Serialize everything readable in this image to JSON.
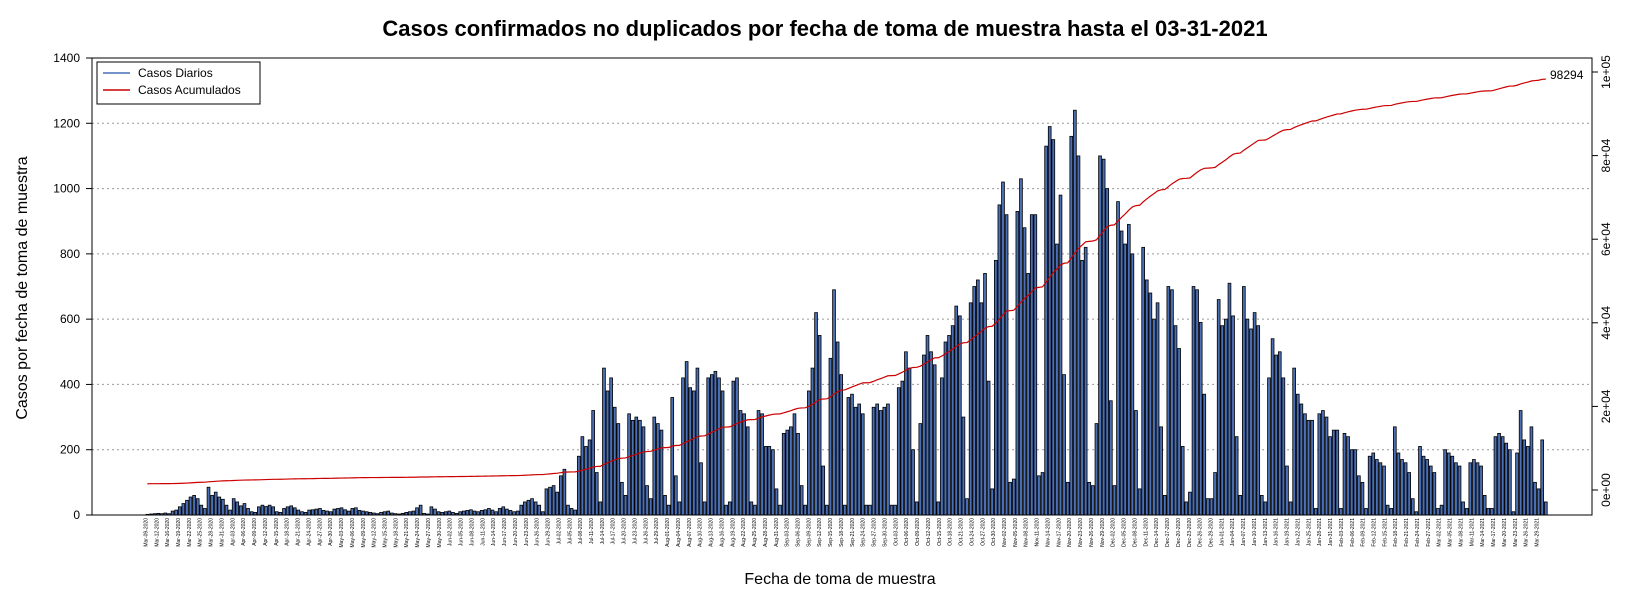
{
  "chart_data": {
    "type": "bar",
    "title": "Casos confirmados no duplicados por fecha de toma de muestra hasta el 03-31-2021",
    "xlabel": "Fecha de toma de muestra",
    "ylabel": "Casos por fecha de toma de muestra",
    "ylim": [
      0,
      1400
    ],
    "yticks": [
      0,
      200,
      400,
      600,
      800,
      1000,
      1200,
      1400
    ],
    "y2lim": [
      0,
      100000
    ],
    "y2ticks": [
      0,
      20000,
      40000,
      60000,
      80000,
      100000
    ],
    "y2tick_labels": [
      "0e+00",
      "2e+04",
      "4e+04",
      "6e+04",
      "8e+04",
      "1e+05"
    ],
    "grid": "horizontal dotted",
    "legend_position": "top-left",
    "series": [
      {
        "name": "Casos Diarios",
        "type": "bar",
        "color": "#4a6fb5",
        "values": [
          2,
          3,
          4,
          5,
          4,
          6,
          4,
          12,
          15,
          25,
          35,
          45,
          55,
          60,
          50,
          30,
          20,
          85,
          60,
          70,
          55,
          48,
          30,
          15,
          50,
          40,
          28,
          35,
          20,
          10,
          8,
          25,
          30,
          26,
          30,
          25,
          10,
          8,
          20,
          25,
          28,
          22,
          15,
          10,
          8,
          15,
          16,
          18,
          20,
          14,
          12,
          10,
          18,
          20,
          22,
          16,
          12,
          20,
          22,
          14,
          12,
          10,
          8,
          6,
          4,
          8,
          10,
          12,
          6,
          4,
          3,
          5,
          8,
          10,
          12,
          22,
          30,
          5,
          3,
          25,
          18,
          10,
          8,
          10,
          12,
          8,
          5,
          10,
          12,
          14,
          16,
          12,
          10,
          14,
          16,
          20,
          15,
          10,
          20,
          25,
          18,
          14,
          10,
          12,
          30,
          40,
          45,
          50,
          40,
          30,
          10,
          80,
          85,
          90,
          70,
          120,
          140,
          30,
          20,
          15,
          180,
          240,
          210,
          230,
          320,
          130,
          40,
          450,
          380,
          420,
          330,
          280,
          100,
          60,
          310,
          290,
          300,
          290,
          270,
          90,
          50,
          300,
          280,
          260,
          60,
          30,
          360,
          120,
          40,
          420,
          470,
          390,
          380,
          450,
          160,
          40,
          420,
          430,
          440,
          420,
          380,
          30,
          40,
          410,
          420,
          320,
          310,
          270,
          40,
          30,
          320,
          310,
          210,
          210,
          200,
          80,
          30,
          250,
          260,
          270,
          310,
          250,
          90,
          30,
          380,
          450,
          620,
          550,
          150,
          30,
          480,
          690,
          530,
          430,
          30,
          360,
          370,
          330,
          340,
          310,
          30,
          30,
          330,
          340,
          320,
          330,
          340,
          30,
          30,
          390,
          410,
          500,
          450,
          200,
          40,
          280,
          490,
          550,
          500,
          460,
          40,
          420,
          530,
          550,
          580,
          640,
          610,
          300,
          50,
          650,
          700,
          720,
          650,
          740,
          410,
          80,
          780,
          950,
          1020,
          920,
          100,
          110,
          930,
          1030,
          880,
          740,
          920,
          920,
          120,
          130,
          1130,
          1190,
          1150,
          830,
          980,
          430,
          100,
          1160,
          1240,
          1100,
          780,
          820,
          100,
          90,
          280,
          1100,
          1090,
          1000,
          350,
          90,
          960,
          870,
          830,
          890,
          800,
          320,
          80,
          820,
          720,
          680,
          600,
          650,
          270,
          60,
          700,
          690,
          580,
          510,
          210,
          40,
          70,
          700,
          690,
          590,
          370,
          50,
          50,
          130,
          660,
          580,
          600,
          710,
          610,
          240,
          60,
          700,
          600,
          570,
          620,
          580,
          60,
          40,
          420,
          540,
          490,
          500,
          420,
          150,
          40,
          450,
          370,
          340,
          310,
          290,
          290,
          20,
          310,
          320,
          300,
          240,
          260,
          260,
          20,
          250,
          240,
          200,
          200,
          120,
          100,
          20,
          180,
          190,
          170,
          160,
          150,
          30,
          20,
          270,
          190,
          170,
          160,
          130,
          50,
          10,
          210,
          180,
          170,
          150,
          130,
          20,
          30,
          200,
          190,
          180,
          160,
          150,
          40,
          20,
          160,
          170,
          160,
          150,
          60,
          20,
          20,
          240,
          250,
          240,
          220,
          200,
          10,
          190,
          320,
          230,
          210,
          270,
          100,
          80,
          230,
          40
        ]
      },
      {
        "name": "Casos Acumulados",
        "type": "line",
        "color": "#cc0000",
        "end_value": 98294,
        "end_label": "98294"
      }
    ],
    "x_tick_labels": [
      "Mar-09-2020",
      "Mar-12-2020",
      "Mar-16-2020",
      "Mar-19-2020",
      "Mar-22-2020",
      "Mar-25-2020",
      "Mar-28-2020",
      "Mar-31-2020",
      "Apr-03-2020",
      "Apr-06-2020",
      "Apr-09-2020",
      "Apr-12-2020",
      "Apr-15-2020",
      "Apr-18-2020",
      "Apr-21-2020",
      "Apr-24-2020",
      "Apr-27-2020",
      "Apr-30-2020",
      "May-03-2020",
      "May-06-2020",
      "May-09-2020",
      "May-12-2020",
      "May-15-2020",
      "May-18-2020",
      "May-21-2020",
      "May-24-2020",
      "May-27-2020",
      "May-30-2020",
      "Jun-02-2020",
      "Jun-05-2020",
      "Jun-08-2020",
      "Jun-11-2020",
      "Jun-14-2020",
      "Jun-17-2020",
      "Jun-20-2020",
      "Jun-23-2020",
      "Jun-26-2020",
      "Jun-29-2020",
      "Jul-02-2020",
      "Jul-05-2020",
      "Jul-08-2020",
      "Jul-11-2020",
      "Jul-14-2020",
      "Jul-17-2020",
      "Jul-20-2020",
      "Jul-23-2020",
      "Jul-26-2020",
      "Jul-29-2020",
      "Aug-01-2020",
      "Aug-04-2020",
      "Aug-07-2020",
      "Aug-10-2020",
      "Aug-13-2020",
      "Aug-16-2020",
      "Aug-19-2020",
      "Aug-22-2020",
      "Aug-25-2020",
      "Aug-28-2020",
      "Aug-31-2020",
      "Sep-03-2020",
      "Sep-06-2020",
      "Sep-09-2020",
      "Sep-12-2020",
      "Sep-15-2020",
      "Sep-18-2020",
      "Sep-21-2020",
      "Sep-24-2020",
      "Sep-27-2020",
      "Sep-30-2020",
      "Oct-03-2020",
      "Oct-06-2020",
      "Oct-09-2020",
      "Oct-12-2020",
      "Oct-15-2020",
      "Oct-18-2020",
      "Oct-21-2020",
      "Oct-24-2020",
      "Oct-27-2020",
      "Oct-30-2020",
      "Nov-02-2020",
      "Nov-05-2020",
      "Nov-08-2020",
      "Nov-11-2020",
      "Nov-14-2020",
      "Nov-17-2020",
      "Nov-20-2020",
      "Nov-23-2020",
      "Nov-26-2020",
      "Nov-29-2020",
      "Dec-02-2020",
      "Dec-05-2020",
      "Dec-08-2020",
      "Dec-11-2020",
      "Dec-14-2020",
      "Dec-17-2020",
      "Dec-20-2020",
      "Dec-23-2020",
      "Dec-26-2020",
      "Dec-29-2020",
      "Jan-01-2021",
      "Jan-04-2021",
      "Jan-07-2021",
      "Jan-10-2021",
      "Jan-13-2021",
      "Jan-16-2021",
      "Jan-19-2021",
      "Jan-22-2021",
      "Jan-25-2021",
      "Jan-28-2021",
      "Jan-31-2021",
      "Feb-03-2021",
      "Feb-06-2021",
      "Feb-09-2021",
      "Feb-12-2021",
      "Feb-15-2021",
      "Feb-18-2021",
      "Feb-21-2021",
      "Feb-24-2021",
      "Feb-27-2021",
      "Mar-02-2021",
      "Mar-05-2021",
      "Mar-08-2021",
      "Mar-11-2021",
      "Mar-14-2021",
      "Mar-17-2021",
      "Mar-20-2021",
      "Mar-23-2021",
      "Mar-26-2021",
      "Mar-29-2021"
    ]
  }
}
